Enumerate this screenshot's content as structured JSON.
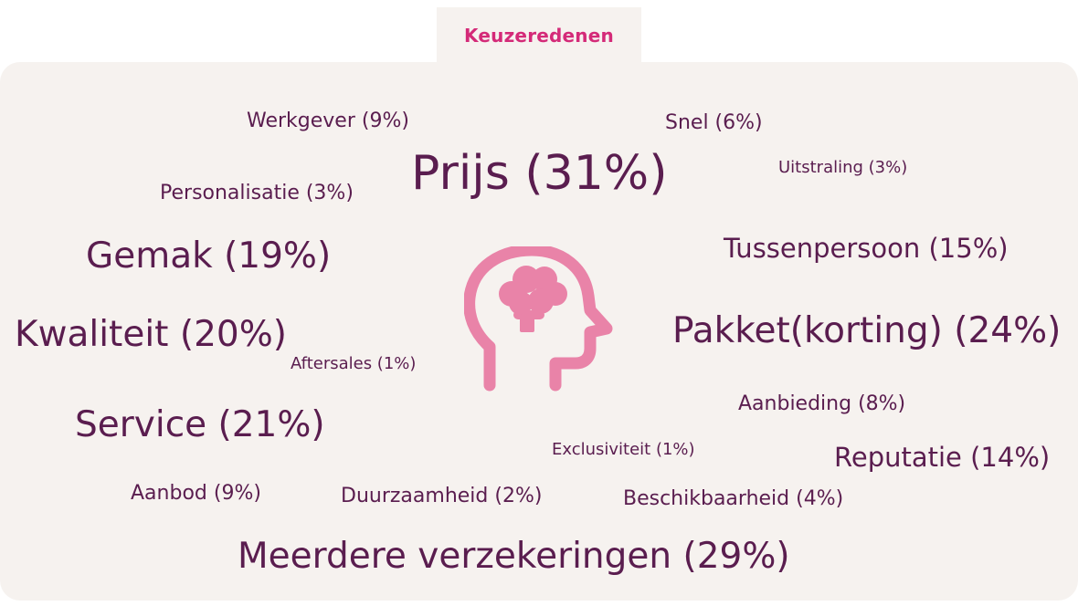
{
  "tab": {
    "label": "Keuzeredenen"
  },
  "icon": {
    "name": "head-brain-icon",
    "color": "#e983a8"
  },
  "colors": {
    "accent": "#d42a78",
    "text": "#5a1d4f",
    "panel": "#f6f2ef"
  },
  "words": [
    {
      "label": "Werkgever",
      "pct": "9%",
      "text": "Werkgever (9%)"
    },
    {
      "label": "Snel",
      "pct": "6%",
      "text": "Snel (6%)"
    },
    {
      "label": "Prijs",
      "pct": "31%",
      "text": "Prijs (31%)"
    },
    {
      "label": "Uitstraling",
      "pct": "3%",
      "text": "Uitstraling (3%)"
    },
    {
      "label": "Personalisatie",
      "pct": "3%",
      "text": "Personalisatie (3%)"
    },
    {
      "label": "Gemak",
      "pct": "19%",
      "text": "Gemak (19%)"
    },
    {
      "label": "Tussenpersoon",
      "pct": "15%",
      "text": "Tussenpersoon (15%)"
    },
    {
      "label": "Kwaliteit",
      "pct": "20%",
      "text": "Kwaliteit (20%)"
    },
    {
      "label": "Pakket(korting)",
      "pct": "24%",
      "text": "Pakket(korting) (24%)"
    },
    {
      "label": "Aftersales",
      "pct": "1%",
      "text": "Aftersales (1%)"
    },
    {
      "label": "Aanbieding",
      "pct": "8%",
      "text": "Aanbieding (8%)"
    },
    {
      "label": "Service",
      "pct": "21%",
      "text": "Service (21%)"
    },
    {
      "label": "Exclusiviteit",
      "pct": "1%",
      "text": "Exclusiviteit (1%)"
    },
    {
      "label": "Reputatie",
      "pct": "14%",
      "text": "Reputatie (14%)"
    },
    {
      "label": "Aanbod",
      "pct": "9%",
      "text": "Aanbod (9%)"
    },
    {
      "label": "Duurzaamheid",
      "pct": "2%",
      "text": "Duurzaamheid (2%)"
    },
    {
      "label": "Beschikbaarheid",
      "pct": "4%",
      "text": "Beschikbaarheid (4%)"
    },
    {
      "label": "Meerdere verzekeringen",
      "pct": "29%",
      "text": "Meerdere verzekeringen (29%)"
    }
  ]
}
